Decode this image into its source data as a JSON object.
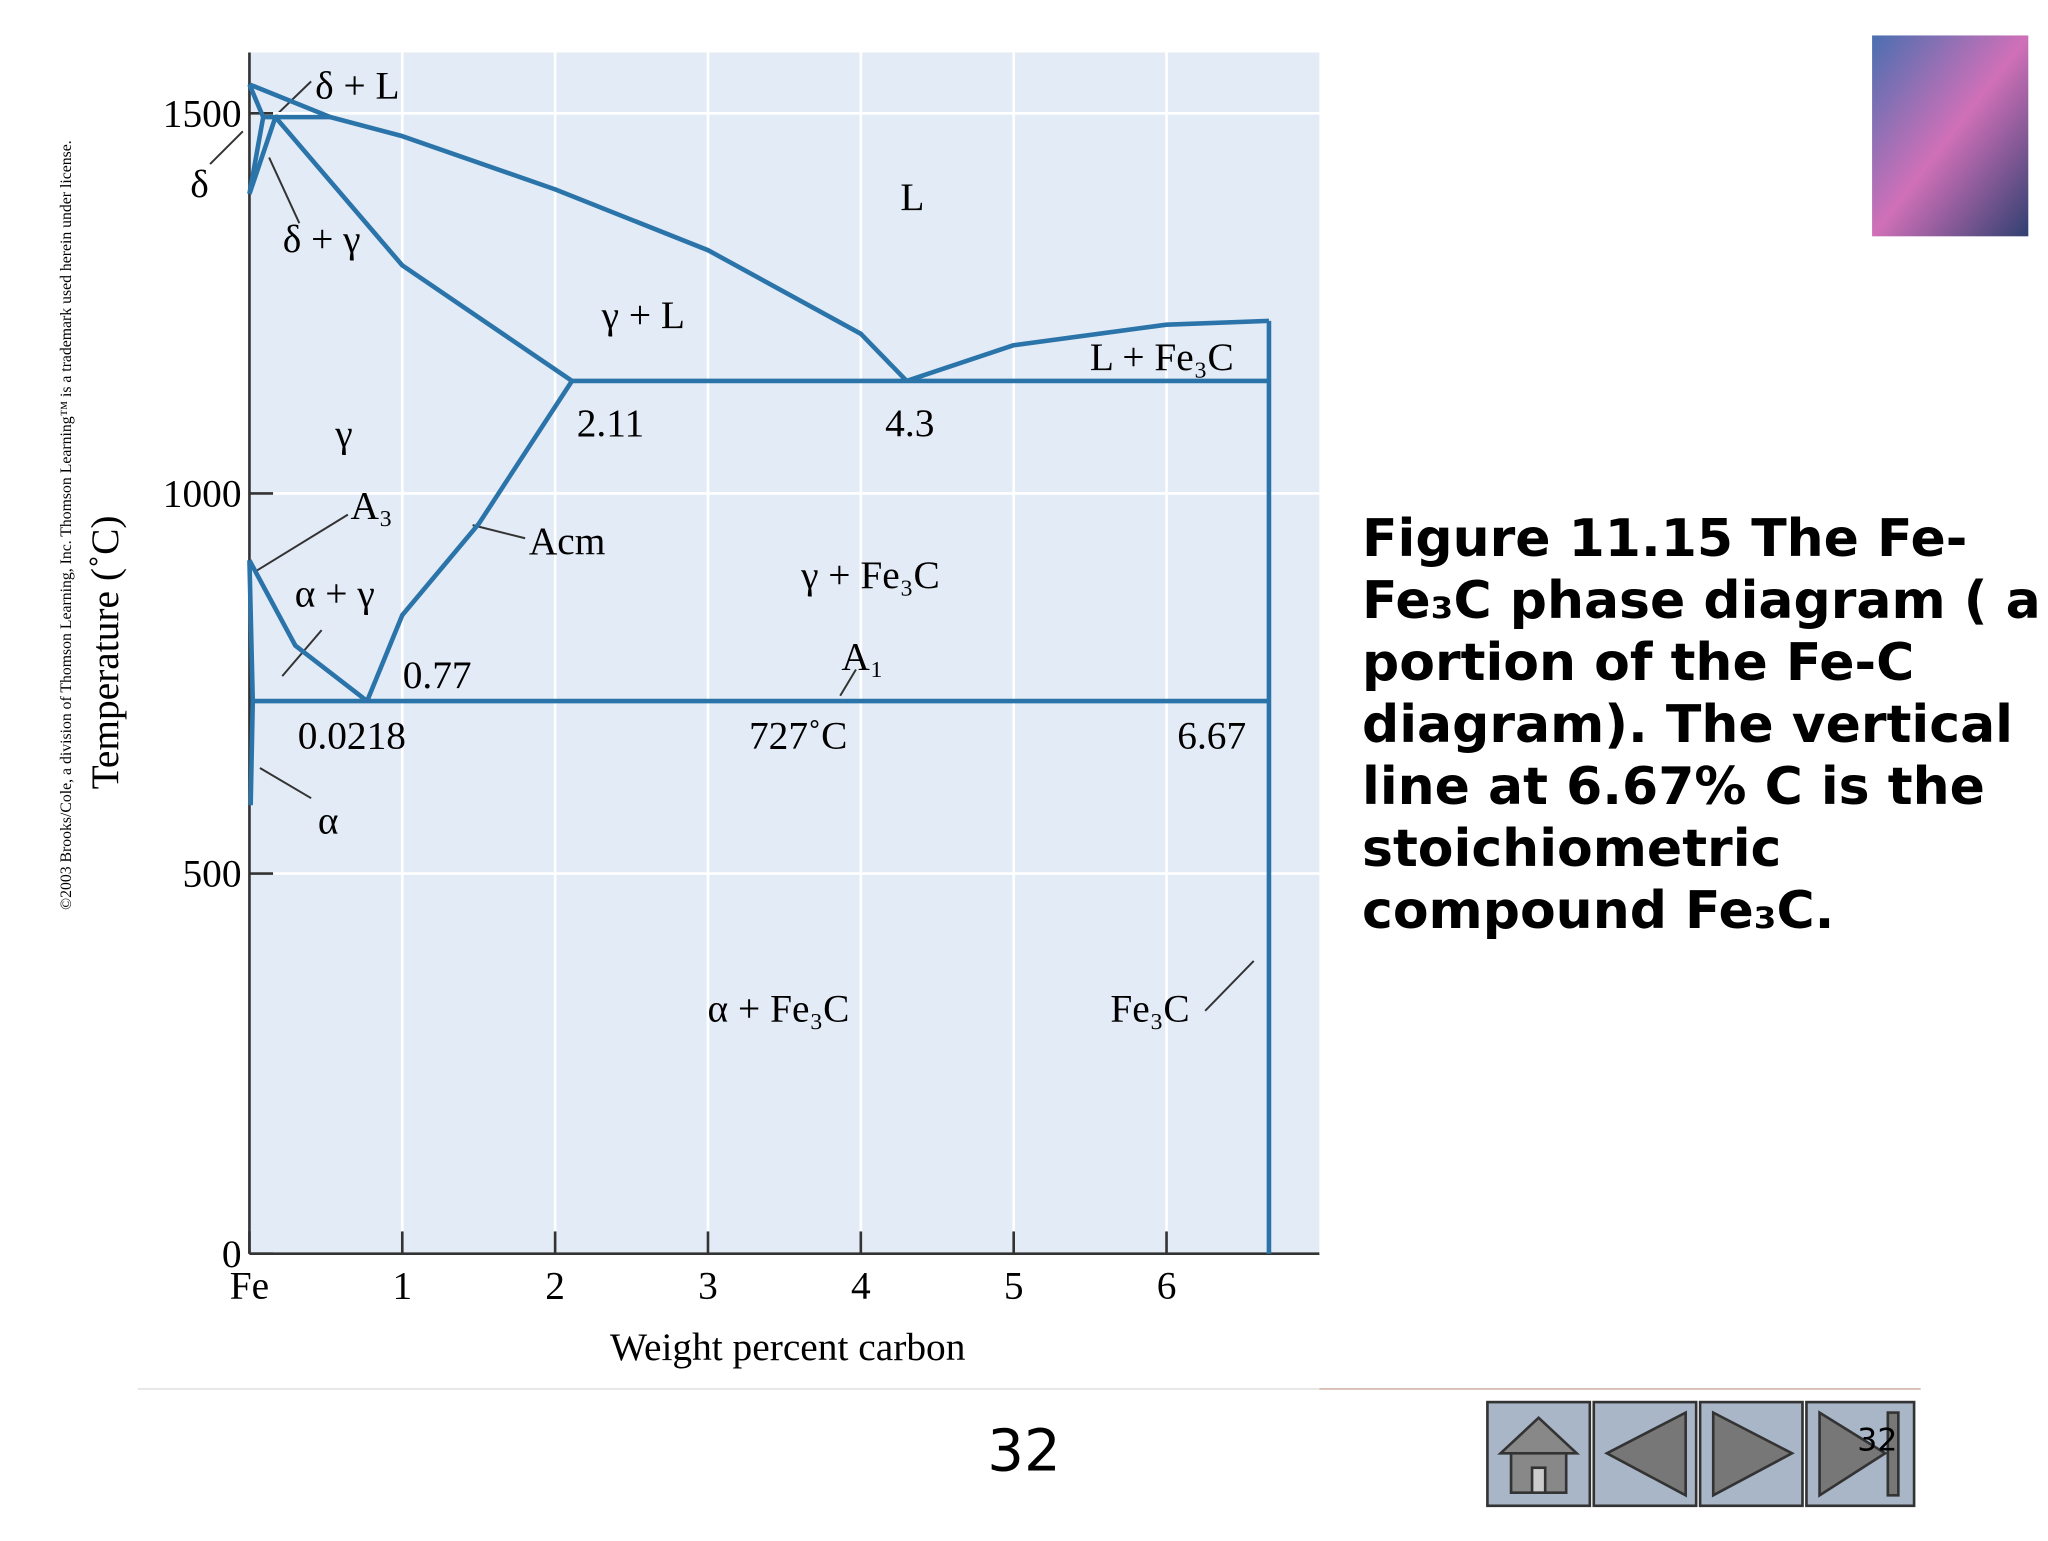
{
  "chart_data": {
    "type": "phase-diagram",
    "xlabel": "Weight percent carbon",
    "ylabel": "Temperature (˚C)",
    "xlim": [
      0,
      7
    ],
    "ylim": [
      0,
      1580
    ],
    "xticks": [
      {
        "value": 0,
        "label": "Fe"
      },
      1,
      2,
      3,
      4,
      5,
      6
    ],
    "yticks": [
      0,
      500,
      1000,
      1500
    ],
    "grid": true,
    "color": "#2b74aa",
    "series": [
      {
        "x": [
          0,
          0.53,
          1,
          2,
          3,
          4,
          4.3
        ],
        "values": [
          1538,
          1495,
          1470,
          1400,
          1320,
          1210,
          1148
        ]
      },
      {
        "x": [
          4.3,
          5,
          6,
          6.67
        ],
        "values": [
          1148,
          1195,
          1222,
          1227
        ]
      },
      {
        "x": [
          0.17,
          1,
          2.11
        ],
        "values": [
          1495,
          1300,
          1148
        ]
      },
      {
        "x": [
          2.11,
          6.67
        ],
        "values": [
          1148,
          1148
        ]
      },
      {
        "x": [
          2.11,
          1.5,
          1,
          0.77
        ],
        "values": [
          1148,
          960,
          840,
          727
        ]
      },
      {
        "x": [
          0,
          0.3,
          0.77
        ],
        "values": [
          912,
          800,
          727
        ]
      },
      {
        "x": [
          0.0218,
          6.67
        ],
        "values": [
          727,
          727
        ]
      },
      {
        "x": [
          6.67,
          6.67
        ],
        "values": [
          0,
          1227
        ]
      },
      {
        "x": [
          0,
          0.0218,
          0.008
        ],
        "values": [
          912,
          727,
          590
        ]
      },
      {
        "x": [
          0,
          0.09,
          0
        ],
        "values": [
          1538,
          1495,
          1394
        ]
      },
      {
        "x": [
          0.09,
          0.53
        ],
        "values": [
          1495,
          1495
        ]
      },
      {
        "x": [
          0,
          0.17
        ],
        "values": [
          1394,
          1495
        ]
      }
    ],
    "annotations": [
      "δ + L",
      "δ",
      "δ + γ",
      "L",
      "γ + L",
      "L + Fe₃C",
      "γ",
      "2.11",
      "4.3",
      "A₃",
      "Acm",
      "α + γ",
      "γ + Fe₃C",
      "A₁",
      "0.77",
      "0.0218",
      "727˚C",
      "6.67",
      "α",
      "α + Fe₃C",
      "Fe₃C"
    ]
  },
  "copyright": "©2003 Brooks/Cole, a division of Thomson Learning, Inc.  Thomson Learning™ is a trademark used herein under license.",
  "caption": "Figure 11.15  The Fe-Fe₃C phase diagram ( a portion of the Fe-C diagram). The vertical line at 6.67% C is the stoichiometric compound Fe₃C.",
  "page_number": "32",
  "nav_page": "32"
}
